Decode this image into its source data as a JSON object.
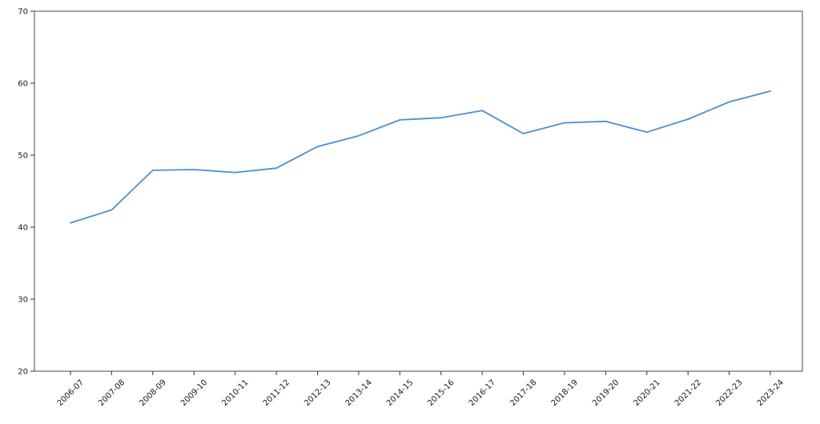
{
  "figure": {
    "background": "#ffffff",
    "spine_color": "#4a4a4a",
    "tick_color": "#333333",
    "label_color": "#1a1a1a"
  },
  "chart_data": {
    "type": "line",
    "title": "",
    "xlabel": "",
    "ylabel": "",
    "categories": [
      "2006-07",
      "2007-08",
      "2008-09",
      "2009-10",
      "2010-11",
      "2011-12",
      "2012-13",
      "2013-14",
      "2014-15",
      "2015-16",
      "2016-17",
      "2017-18",
      "2018-19",
      "2019-20",
      "2020-21",
      "2021-22",
      "2022-23",
      "2023-24"
    ],
    "series": [
      {
        "name": "value",
        "color": "#4a90d0",
        "values": [
          40.6,
          42.4,
          47.9,
          48.0,
          47.6,
          48.2,
          51.2,
          52.7,
          54.9,
          55.2,
          56.2,
          53.0,
          54.5,
          54.7,
          53.2,
          55.0,
          57.4,
          58.9
        ]
      }
    ],
    "ylim": [
      20,
      70
    ],
    "yticks": [
      20,
      30,
      40,
      50,
      60,
      70
    ],
    "xtick_rotation_deg": 45,
    "grid": false,
    "legend": false
  }
}
